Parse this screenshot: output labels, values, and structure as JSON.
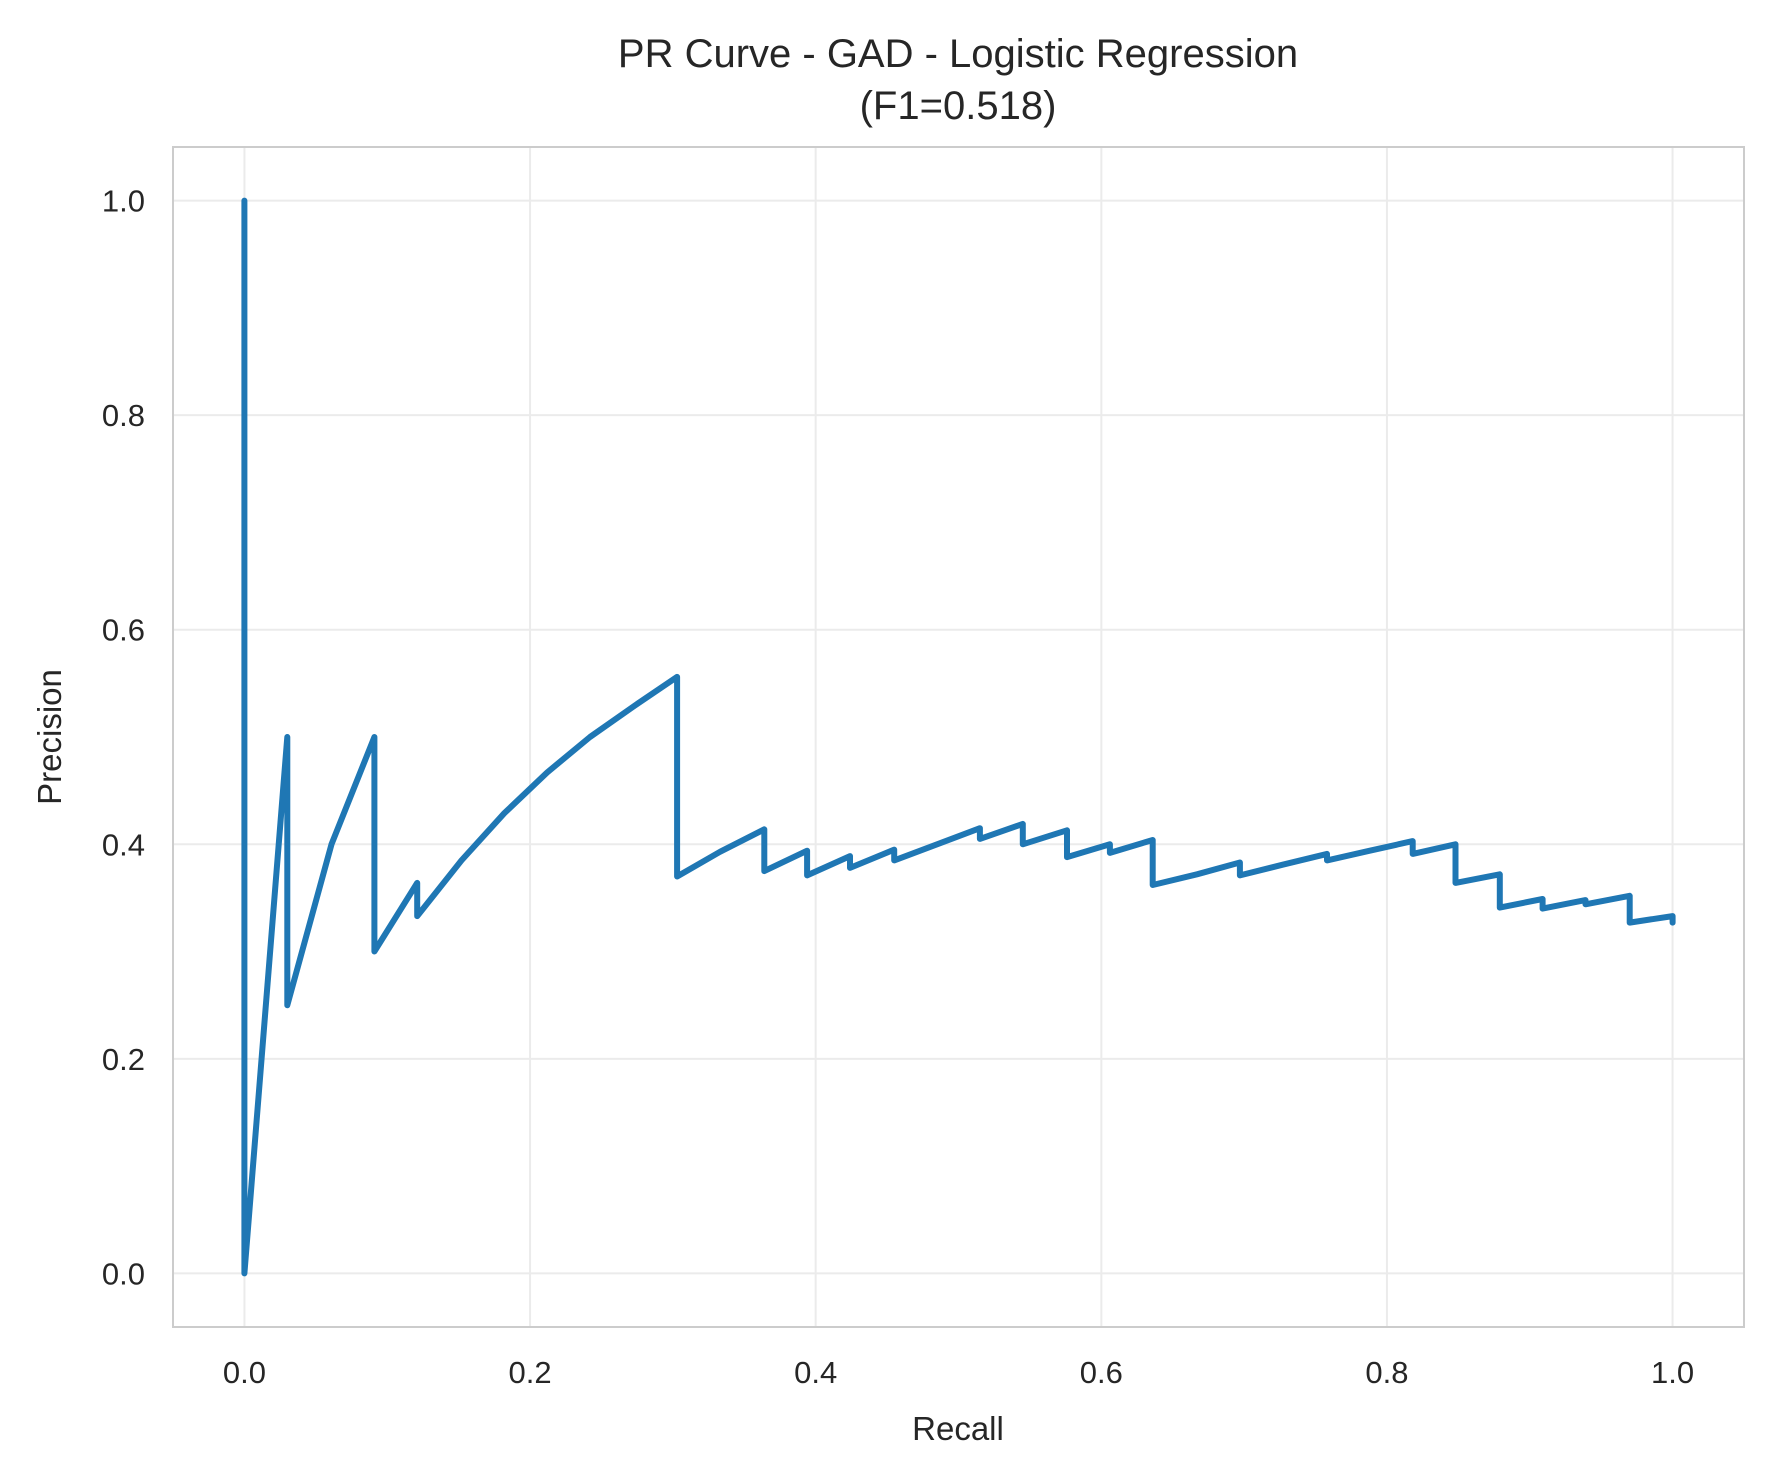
{
  "chart_data": {
    "type": "line",
    "title": "PR Curve - GAD - Logistic Regression",
    "subtitle": "(F1=0.518)",
    "xlabel": "Recall",
    "ylabel": "Precision",
    "xlim": [
      -0.05,
      1.05
    ],
    "ylim": [
      -0.05,
      1.05
    ],
    "x_ticks": [
      "0.0",
      "0.2",
      "0.4",
      "0.6",
      "0.8",
      "1.0"
    ],
    "y_ticks": [
      "0.0",
      "0.2",
      "0.4",
      "0.6",
      "0.8",
      "1.0"
    ],
    "grid": true,
    "line_color": "#1f77b4",
    "series": [
      {
        "x": [
          0.0,
          0.0,
          0.03,
          0.03,
          0.061,
          0.091,
          0.091,
          0.121,
          0.121,
          0.152,
          0.182,
          0.212,
          0.242,
          0.273,
          0.303,
          0.303,
          0.333,
          0.364,
          0.364,
          0.394,
          0.394,
          0.424,
          0.424,
          0.455,
          0.455,
          0.485,
          0.515,
          0.515,
          0.545,
          0.545,
          0.576,
          0.576,
          0.606,
          0.606,
          0.636,
          0.636,
          0.667,
          0.697,
          0.697,
          0.727,
          0.758,
          0.758,
          0.788,
          0.818,
          0.818,
          0.848,
          0.848,
          0.879,
          0.879,
          0.909,
          0.909,
          0.939,
          0.939,
          0.97,
          0.97,
          1.0,
          1.0
        ],
        "y": [
          1.0,
          0.0,
          0.5,
          0.25,
          0.4,
          0.5,
          0.3,
          0.364,
          0.333,
          0.385,
          0.429,
          0.467,
          0.5,
          0.529,
          0.556,
          0.37,
          0.393,
          0.414,
          0.375,
          0.394,
          0.371,
          0.389,
          0.378,
          0.395,
          0.385,
          0.4,
          0.415,
          0.405,
          0.419,
          0.4,
          0.413,
          0.388,
          0.4,
          0.392,
          0.404,
          0.362,
          0.372,
          0.383,
          0.371,
          0.381,
          0.391,
          0.385,
          0.394,
          0.403,
          0.391,
          0.4,
          0.364,
          0.372,
          0.341,
          0.349,
          0.34,
          0.348,
          0.344,
          0.352,
          0.327,
          0.333,
          0.327
        ]
      }
    ]
  }
}
